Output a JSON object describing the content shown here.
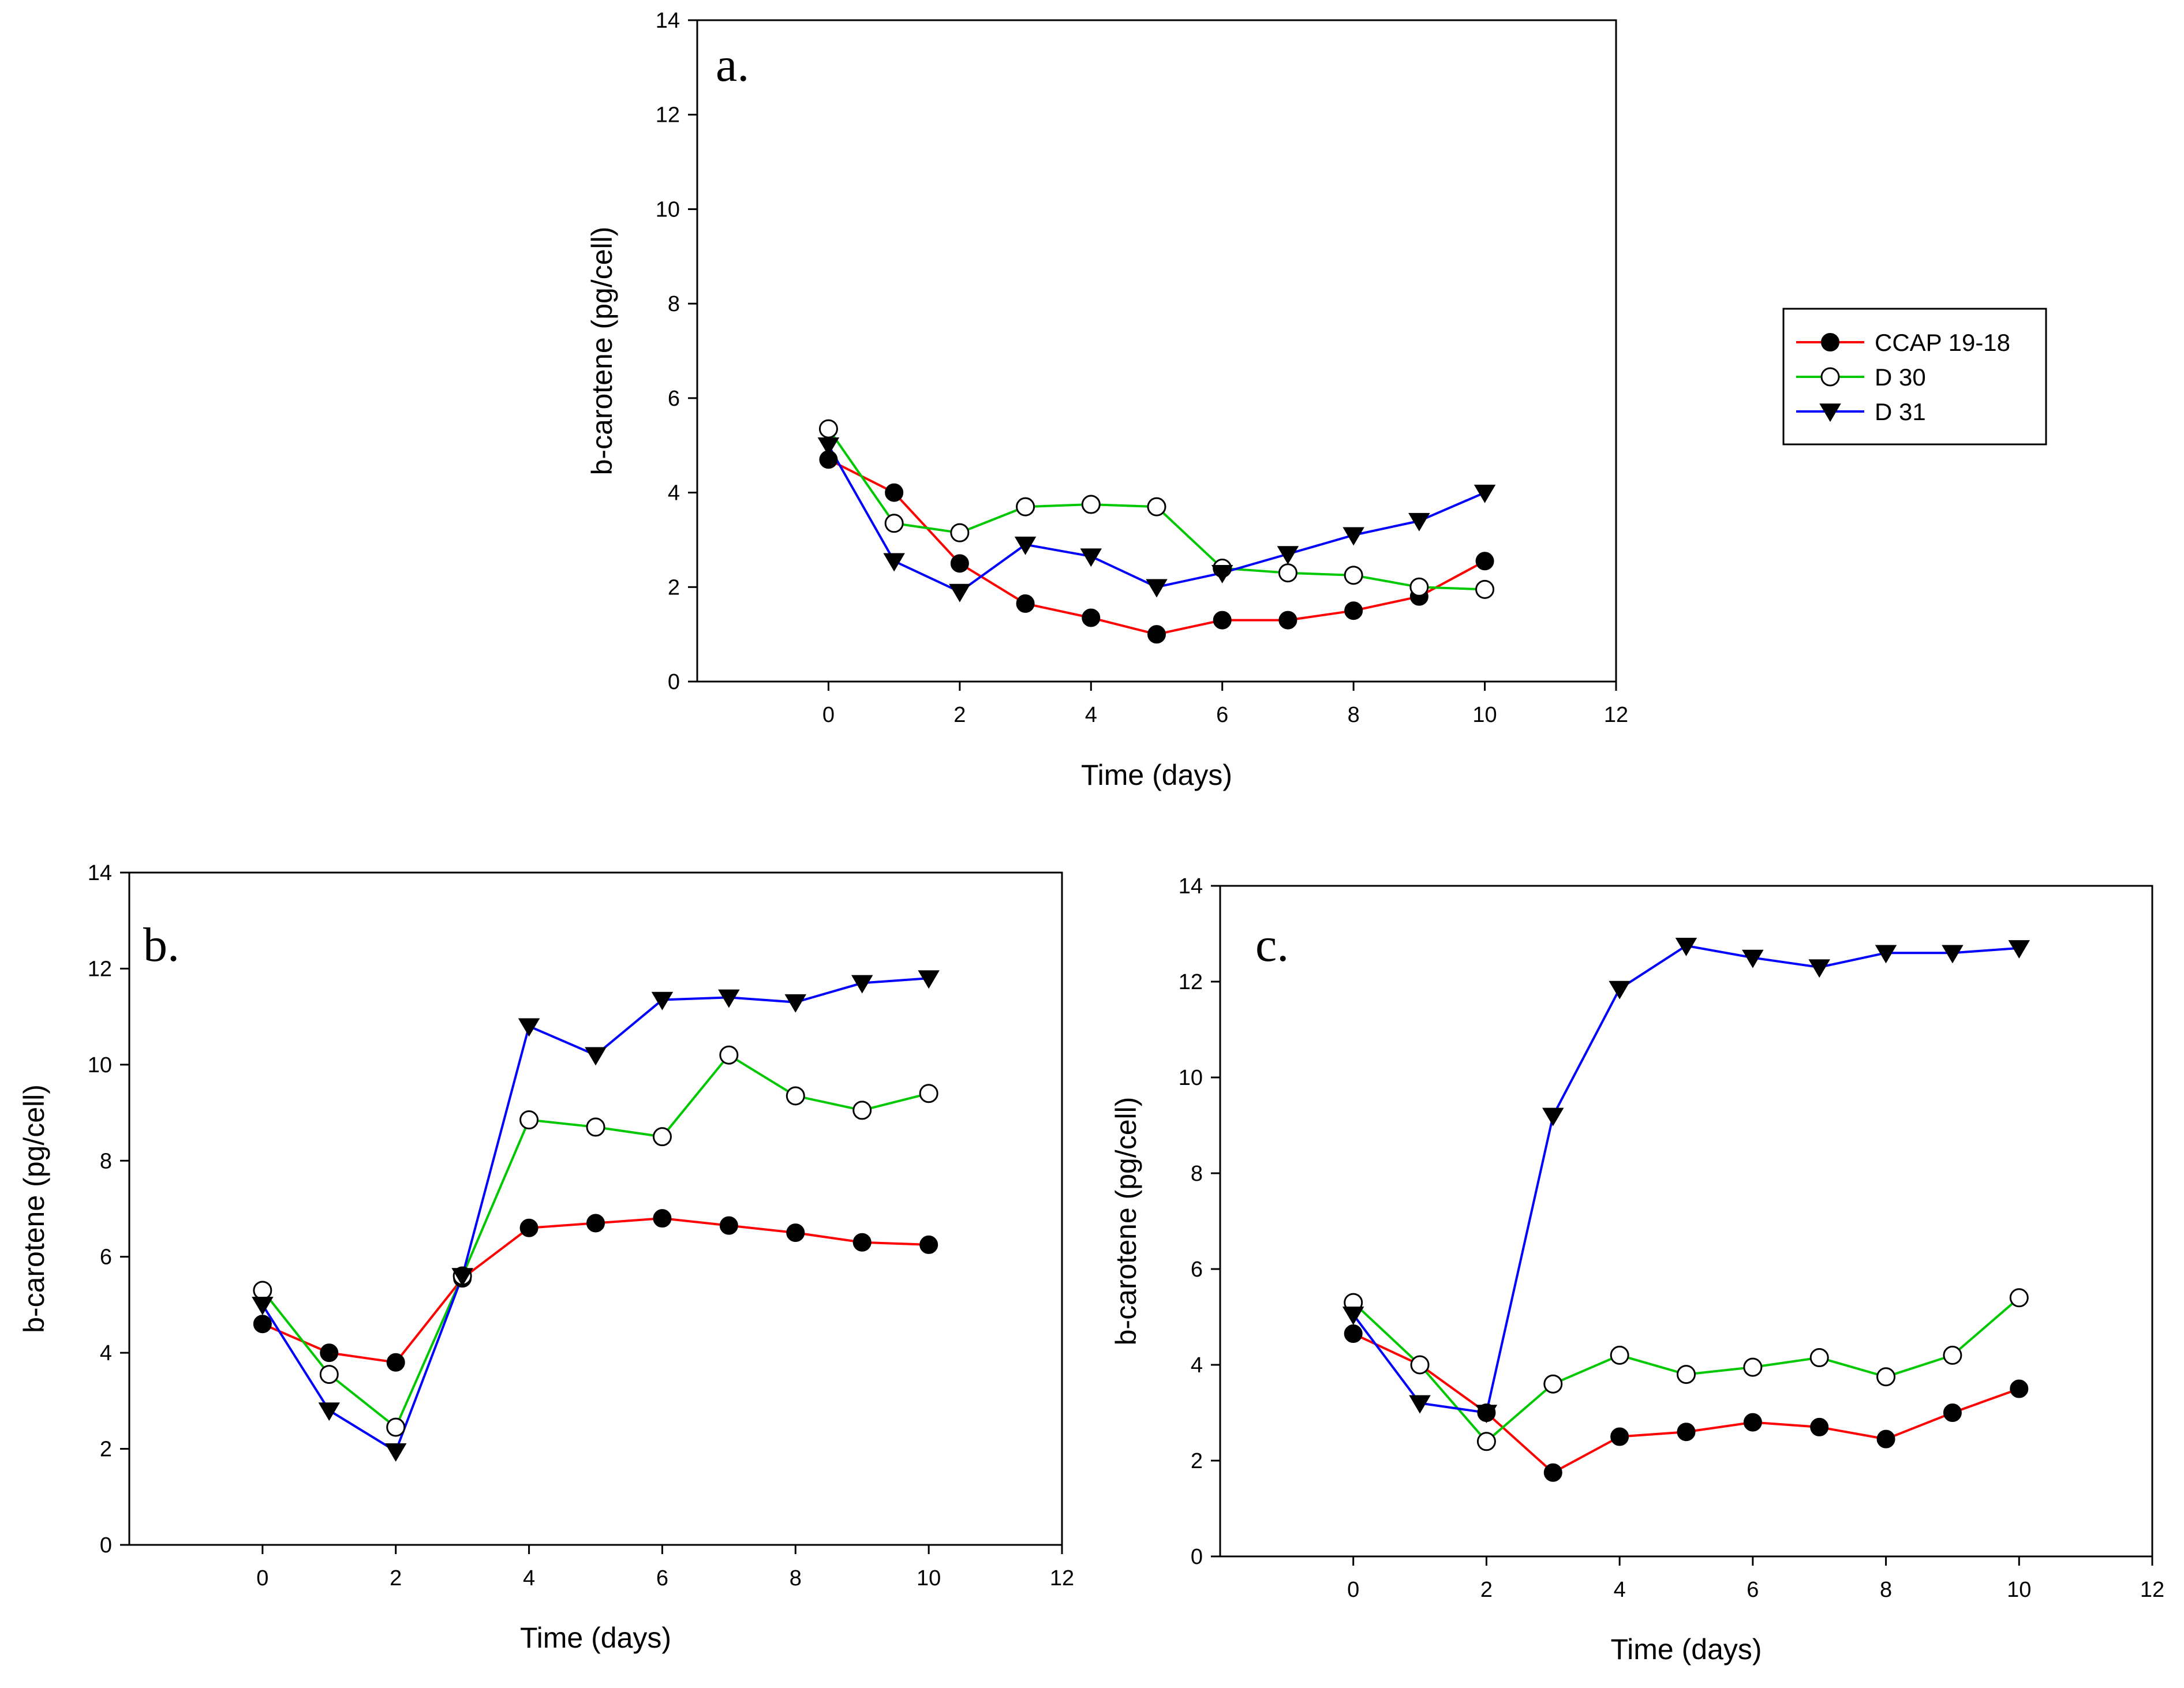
{
  "legend": {
    "placement": "right of panel a",
    "entries": [
      {
        "label": "CCAP 19-18",
        "color": "#ff0000",
        "marker": "filled-circle"
      },
      {
        "label": "D 30",
        "color": "#00c800",
        "marker": "open-circle"
      },
      {
        "label": "D 31",
        "color": "#0000ff",
        "marker": "filled-triangle-down"
      }
    ]
  },
  "chart_data": [
    {
      "type": "line",
      "panel_label": "a.",
      "xlabel": "Time (days)",
      "ylabel": "b-carotene (pg/cell)",
      "xlim": [
        -2,
        12
      ],
      "ylim": [
        0,
        14
      ],
      "xticks": [
        0,
        2,
        4,
        6,
        8,
        10,
        12
      ],
      "yticks": [
        0,
        2,
        4,
        6,
        8,
        10,
        12,
        14
      ],
      "x": [
        0,
        1,
        2,
        3,
        4,
        5,
        6,
        7,
        8,
        9,
        10
      ],
      "grid": false,
      "series": [
        {
          "name": "CCAP 19-18",
          "color": "#ff0000",
          "marker": "filled-circle",
          "values": [
            4.7,
            4.0,
            2.5,
            1.65,
            1.35,
            1.0,
            1.3,
            1.3,
            1.5,
            1.8,
            2.55
          ]
        },
        {
          "name": "D 30",
          "color": "#00c800",
          "marker": "open-circle",
          "values": [
            5.35,
            3.35,
            3.15,
            3.7,
            3.75,
            3.7,
            2.4,
            2.3,
            2.25,
            2.0,
            1.95
          ]
        },
        {
          "name": "D 31",
          "color": "#0000ff",
          "marker": "filled-triangle-down",
          "values": [
            5.0,
            2.55,
            1.9,
            2.9,
            2.65,
            2.0,
            2.3,
            2.7,
            3.1,
            3.4,
            4.0
          ]
        }
      ]
    },
    {
      "type": "line",
      "panel_label": "b.",
      "xlabel": "Time (days)",
      "ylabel": "b-carotene (pg/cell)",
      "xlim": [
        -2,
        12
      ],
      "ylim": [
        0,
        14
      ],
      "xticks": [
        0,
        2,
        4,
        6,
        8,
        10,
        12
      ],
      "yticks": [
        0,
        2,
        4,
        6,
        8,
        10,
        12,
        14
      ],
      "x": [
        0,
        1,
        2,
        3,
        4,
        5,
        6,
        7,
        8,
        9,
        10
      ],
      "grid": false,
      "series": [
        {
          "name": "CCAP 19-18",
          "color": "#ff0000",
          "marker": "filled-circle",
          "values": [
            4.6,
            4.0,
            3.8,
            5.55,
            6.6,
            6.7,
            6.8,
            6.65,
            6.5,
            6.3,
            6.25
          ]
        },
        {
          "name": "D 30",
          "color": "#00c800",
          "marker": "open-circle",
          "values": [
            5.3,
            3.55,
            2.45,
            5.6,
            8.85,
            8.7,
            8.5,
            10.2,
            9.35,
            9.05,
            9.4
          ]
        },
        {
          "name": "D 31",
          "color": "#0000ff",
          "marker": "filled-triangle-down",
          "values": [
            5.0,
            2.8,
            1.95,
            5.6,
            10.8,
            10.2,
            11.35,
            11.4,
            11.3,
            11.7,
            11.8
          ]
        }
      ]
    },
    {
      "type": "line",
      "panel_label": "c.",
      "xlabel": "Time (days)",
      "ylabel": "b-carotene (pg/cell)",
      "xlim": [
        -2,
        12
      ],
      "ylim": [
        0,
        14
      ],
      "xticks": [
        0,
        2,
        4,
        6,
        8,
        10,
        12
      ],
      "yticks": [
        0,
        2,
        4,
        6,
        8,
        10,
        12,
        14
      ],
      "x": [
        0,
        1,
        2,
        3,
        4,
        5,
        6,
        7,
        8,
        9,
        10
      ],
      "grid": false,
      "series": [
        {
          "name": "CCAP 19-18",
          "color": "#ff0000",
          "marker": "filled-circle",
          "values": [
            4.65,
            4.0,
            3.0,
            1.75,
            2.5,
            2.6,
            2.8,
            2.7,
            2.45,
            3.0,
            3.5
          ]
        },
        {
          "name": "D 30",
          "color": "#00c800",
          "marker": "open-circle",
          "values": [
            5.3,
            4.0,
            2.4,
            3.6,
            4.2,
            3.8,
            3.95,
            4.15,
            3.75,
            4.2,
            5.4
          ]
        },
        {
          "name": "D 31",
          "color": "#0000ff",
          "marker": "filled-triangle-down",
          "values": [
            5.05,
            3.2,
            3.0,
            9.2,
            11.85,
            12.75,
            12.5,
            12.3,
            12.6,
            12.6,
            12.7
          ]
        }
      ]
    }
  ]
}
